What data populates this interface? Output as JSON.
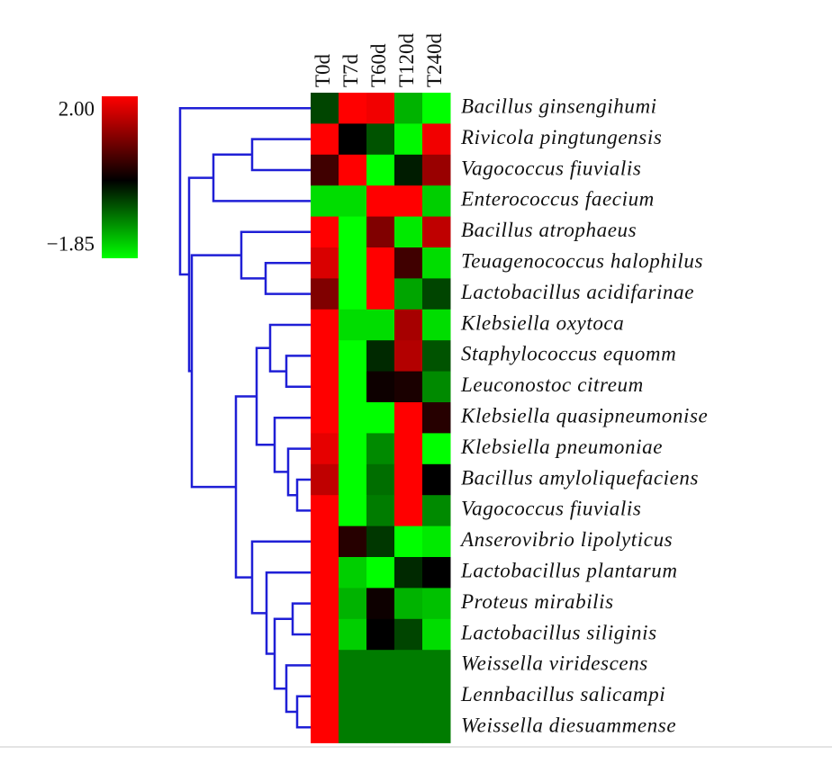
{
  "chart_data": {
    "type": "heatmap",
    "x": [
      "T0d",
      "T7d",
      "T60d",
      "T120d",
      "T240d"
    ],
    "y": [
      "Bacillus ginsengihumi",
      "Rivicola pingtungensis",
      "Vagococcus fiuvialis",
      "Enterococcus faecium",
      "Bacillus atrophaeus",
      "Teuagenococcus halophilus",
      "Lactobacillus acidifarinae",
      "Klebsiella oxytoca",
      "Staphylococcus equomm",
      "Leuconostoc citreum",
      "Klebsiella quasipneumonise",
      "Klebsiella pneumoniae",
      "Bacillus amyloliquefaciens",
      "Vagococcus fiuvialis",
      "Anserovibrio lipolyticus",
      "Lactobacillus plantarum",
      "Proteus mirabilis",
      "Lactobacillus siliginis",
      "Weissella viridescens",
      "Lennbacillus salicampi",
      "Weissella diesuammense"
    ],
    "values": [
      [
        -0.5,
        2,
        1.9,
        -1.3,
        -1.85
      ],
      [
        2,
        0,
        -0.6,
        -1.8,
        1.9
      ],
      [
        0.5,
        2,
        -1.85,
        -0.2,
        1.2
      ],
      [
        -1.6,
        -1.6,
        2,
        2,
        -1.5
      ],
      [
        2,
        -1.85,
        1.0,
        -1.7,
        1.5
      ],
      [
        1.7,
        -1.85,
        2,
        0.5,
        -1.6
      ],
      [
        1.0,
        -1.85,
        2,
        -1.2,
        -0.5
      ],
      [
        2,
        -1.6,
        -1.6,
        1.3,
        -1.6
      ],
      [
        2,
        -1.85,
        -0.3,
        1.4,
        -0.6
      ],
      [
        2,
        -1.85,
        0.1,
        0.2,
        -1.0
      ],
      [
        2,
        -1.85,
        -1.85,
        2,
        0.3
      ],
      [
        1.8,
        -1.85,
        -1.0,
        2,
        -1.85
      ],
      [
        1.5,
        -1.85,
        -0.8,
        2,
        0
      ],
      [
        2,
        -1.85,
        -0.9,
        2,
        -1.0
      ],
      [
        2,
        0.3,
        -0.4,
        -1.85,
        -1.7
      ],
      [
        2,
        -1.5,
        -1.85,
        -0.3,
        0
      ],
      [
        2,
        -1.3,
        0.1,
        -1.3,
        -1.4
      ],
      [
        2,
        -1.5,
        0,
        -0.5,
        -1.6
      ],
      [
        2,
        -0.9,
        -0.9,
        -0.9,
        -0.9
      ],
      [
        2,
        -0.9,
        -0.9,
        -0.9,
        -0.9
      ],
      [
        2,
        -0.9,
        -0.9,
        -0.9,
        -0.9
      ]
    ],
    "clim": [
      -1.85,
      2.0
    ],
    "colorbar_ticks": [
      {
        "value": 2.0,
        "label": "2.00"
      },
      {
        "value": -1.85,
        "label": "−1.85"
      }
    ],
    "colormap": [
      "#00ff00",
      "#000000",
      "#ff0000"
    ],
    "dendrogram_color": "#1f1fd6"
  }
}
